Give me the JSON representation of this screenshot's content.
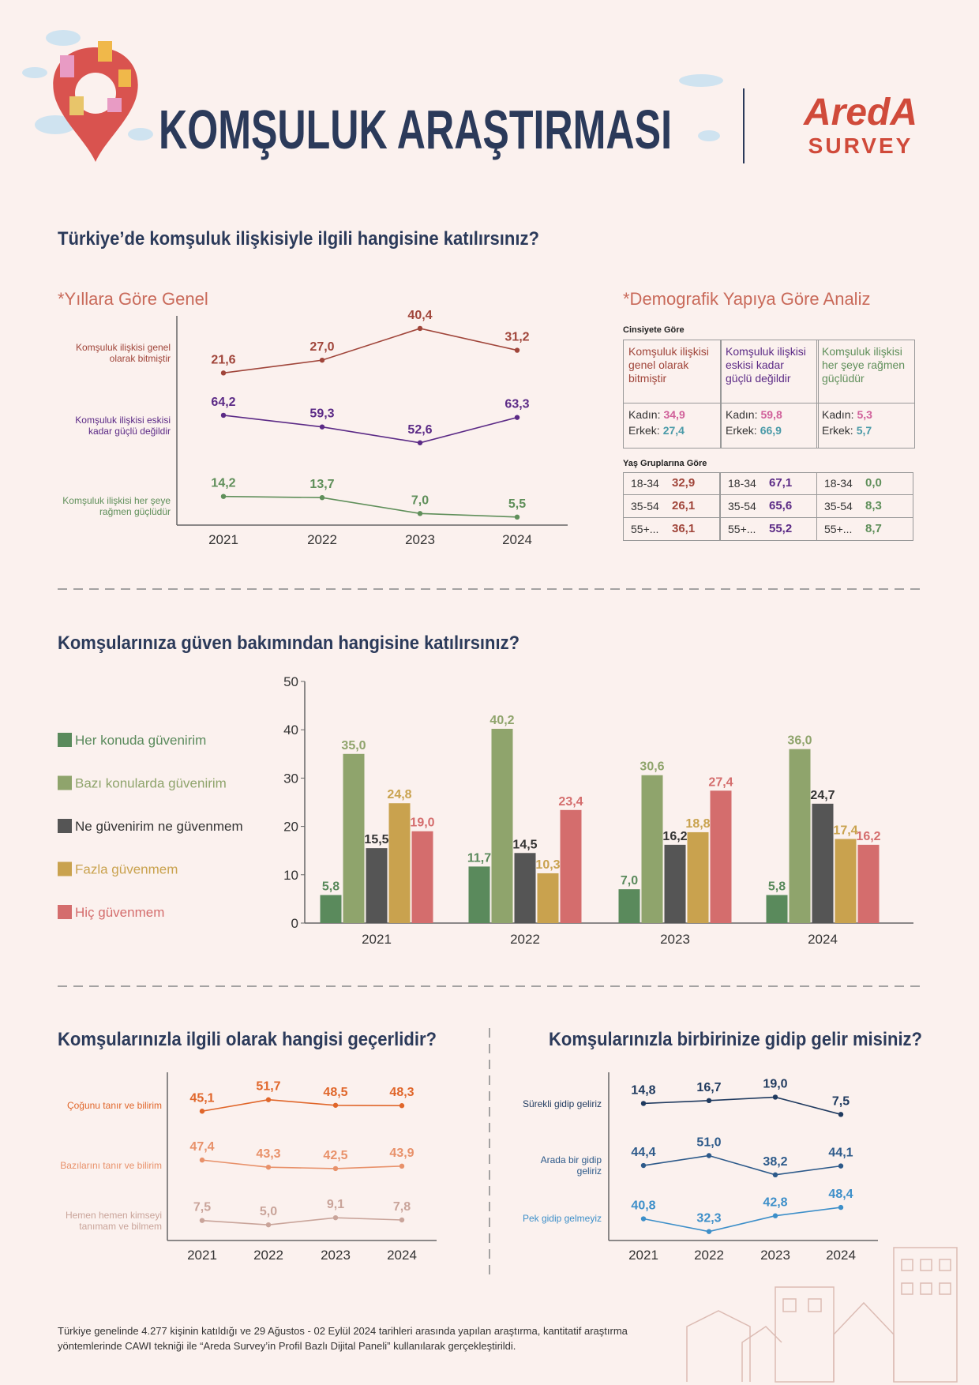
{
  "header": {
    "title": "KOMŞULUK ARAŞTIRMASI",
    "logo": "AredA",
    "logo_sub": "SURVEY"
  },
  "chart_data": [
    {
      "type": "line",
      "title": "Türkiye’de komşuluk ilişkisiyle ilgili hangisine katılırsınız?",
      "subtitle": "*Yıllara Göre Genel",
      "categories": [
        "2021",
        "2022",
        "2023",
        "2024"
      ],
      "series": [
        {
          "name": "Komşuluk ilişkisi genel olarak bitmiştir",
          "color": "#a0453a",
          "values": [
            21.6,
            27.0,
            40.4,
            31.2
          ],
          "value_labels": [
            "21,6",
            "27,0",
            "40,4",
            "31,2"
          ]
        },
        {
          "name": "Komşuluk ilişkisi eskisi kadar güçlü değildir",
          "color": "#5b2a86",
          "values": [
            64.2,
            59.3,
            52.6,
            63.3
          ],
          "value_labels": [
            "64,2",
            "59,3",
            "52,6",
            "63,3"
          ]
        },
        {
          "name": "Komşuluk ilişkisi her şeye rağmen güçlüdür",
          "color": "#5f8f5a",
          "values": [
            14.2,
            13.7,
            7.0,
            5.5
          ],
          "value_labels": [
            "14,2",
            "13,7",
            "7,0",
            "5,5"
          ]
        }
      ]
    },
    {
      "type": "bar",
      "title": "Komşularınıza güven bakımından hangisine katılırsınız?",
      "categories": [
        "2021",
        "2022",
        "2023",
        "2024"
      ],
      "ylim": [
        0,
        50
      ],
      "yticks": [
        0,
        10,
        20,
        30,
        40,
        50
      ],
      "series": [
        {
          "name": "Her konuda güvenirim",
          "color": "#5a8a5c",
          "values": [
            5.8,
            11.7,
            7.0,
            5.8
          ],
          "value_labels": [
            "5,8",
            "11,7",
            "7,0",
            "5,8"
          ]
        },
        {
          "name": "Bazı konularda güvenirim",
          "color": "#8fa46c",
          "values": [
            35.0,
            40.2,
            30.6,
            36.0
          ],
          "value_labels": [
            "35,0",
            "40,2",
            "30,6",
            "36,0"
          ]
        },
        {
          "name": "Ne güvenirim ne güvenmem",
          "color": "#555555",
          "values": [
            15.5,
            14.5,
            16.2,
            24.7
          ],
          "value_labels": [
            "15,5",
            "14,5",
            "16,2",
            "24,7"
          ]
        },
        {
          "name": "Fazla güvenmem",
          "color": "#c9a24e",
          "values": [
            24.8,
            10.3,
            18.8,
            17.4
          ],
          "value_labels": [
            "24,8",
            "10,3",
            "18,8",
            "17,4"
          ]
        },
        {
          "name": "Hiç güvenmem",
          "color": "#d46d6d",
          "values": [
            19.0,
            23.4,
            27.4,
            16.2
          ],
          "value_labels": [
            "19,0",
            "23,4",
            "27,4",
            "16,2"
          ]
        }
      ]
    },
    {
      "type": "line",
      "title": "Komşularınızla ilgili olarak hangisi geçerlidir?",
      "categories": [
        "2021",
        "2022",
        "2023",
        "2024"
      ],
      "series": [
        {
          "name": "Çoğunu tanır ve bilirim",
          "color": "#e0662a",
          "values": [
            45.1,
            51.7,
            48.5,
            48.3
          ],
          "value_labels": [
            "45,1",
            "51,7",
            "48,5",
            "48,3"
          ]
        },
        {
          "name": "Bazılarını tanır ve bilirim",
          "color": "#e8916a",
          "values": [
            47.4,
            43.3,
            42.5,
            43.9
          ],
          "value_labels": [
            "47,4",
            "43,3",
            "42,5",
            "43,9"
          ]
        },
        {
          "name": "Hemen hemen kimseyi tanımam ve bilmem",
          "color": "#c9a49a",
          "values": [
            7.5,
            5.0,
            9.1,
            7.8
          ],
          "value_labels": [
            "7,5",
            "5,0",
            "9,1",
            "7,8"
          ]
        }
      ]
    },
    {
      "type": "line",
      "title": "Komşularınızla birbirinize gidip gelir misiniz?",
      "categories": [
        "2021",
        "2022",
        "2023",
        "2024"
      ],
      "series": [
        {
          "name": "Sürekli gidip geliriz",
          "color": "#1f3a5f",
          "values": [
            14.8,
            16.7,
            19.0,
            7.5
          ],
          "value_labels": [
            "14,8",
            "16,7",
            "19,0",
            "7,5"
          ]
        },
        {
          "name": "Arada bir gidip geliriz",
          "color": "#2d5a8a",
          "values": [
            44.4,
            51.0,
            38.2,
            44.1
          ],
          "value_labels": [
            "44,4",
            "51,0",
            "38,2",
            "44,1"
          ]
        },
        {
          "name": "Pek gidip gelmeyiz",
          "color": "#3d8fc9",
          "values": [
            40.8,
            32.3,
            42.8,
            48.4
          ],
          "value_labels": [
            "40,8",
            "32,3",
            "42,8",
            "48,4"
          ]
        }
      ]
    }
  ],
  "demographics": {
    "title": "*Demografik Yapıya Göre Analiz",
    "colors": [
      "#a0453a",
      "#5b2a86",
      "#5f8f5a"
    ],
    "gender": {
      "title": "Cinsiyete Göre",
      "columns": [
        "Komşuluk ilişkisi genel olarak bitmiştir",
        "Komşuluk ilişkisi eskisi kadar güçlü değildir",
        "Komşuluk ilişkisi her şeye rağmen güçlüdür"
      ],
      "labels": [
        "Kadın:",
        "Erkek:"
      ],
      "label_colors": [
        "#d0609a",
        "#4a9aa8"
      ],
      "rows": [
        [
          "34,9",
          "59,8",
          "5,3"
        ],
        [
          "27,4",
          "66,9",
          "5,7"
        ]
      ]
    },
    "age": {
      "title": "Yaş Gruplarına Göre",
      "groups": [
        "18-34",
        "35-54",
        "55+..."
      ],
      "rows": [
        [
          "32,9",
          "67,1",
          "0,0"
        ],
        [
          "26,1",
          "65,6",
          "8,3"
        ],
        [
          "36,1",
          "55,2",
          "8,7"
        ]
      ]
    }
  },
  "footer": "Türkiye genelinde 4.277 kişinin katıldığı ve 29 Ağustos - 02 Eylül 2024 tarihleri arasında yapılan araştırma, kantitatif araştırma yöntemlerinde CAWI tekniği ile “Areda Survey’in Profil Bazlı Dijital Paneli” kullanılarak gerçekleştirildi."
}
